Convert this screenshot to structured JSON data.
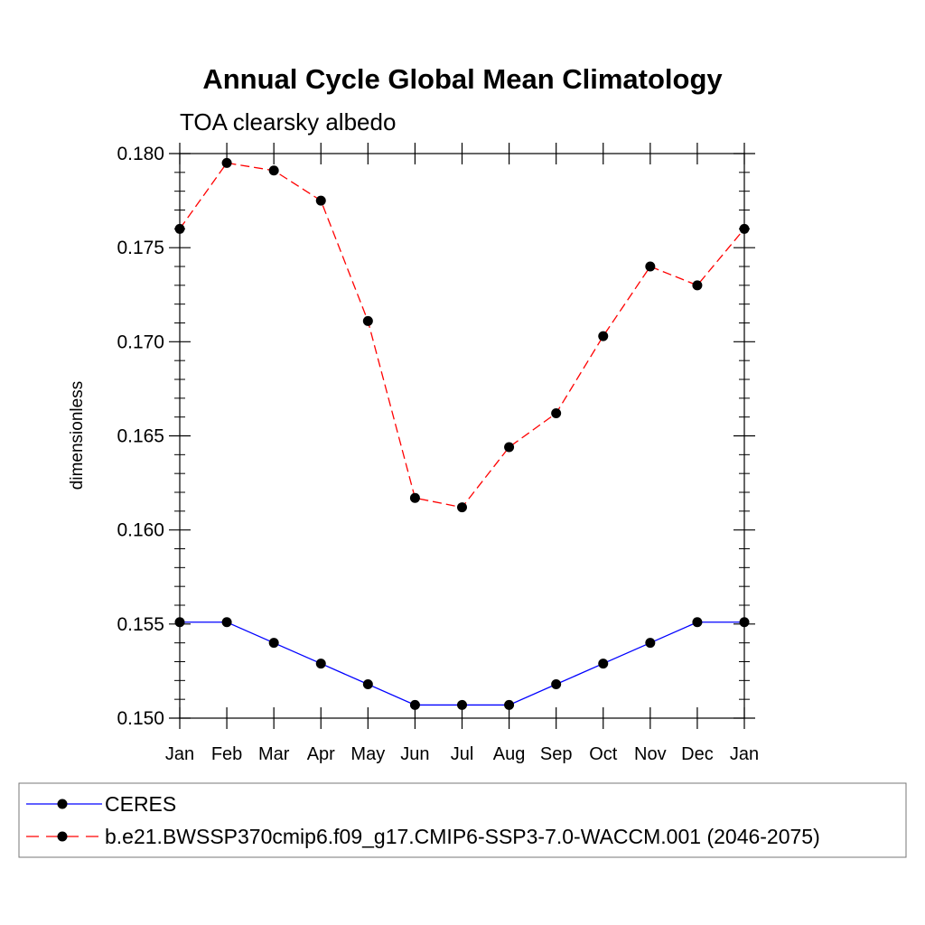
{
  "chart_data": {
    "type": "line",
    "title": "Annual Cycle Global Mean Climatology",
    "subtitle": "TOA clearsky albedo",
    "ylabel": "dimensionless",
    "xlabel": "",
    "categories": [
      "Jan",
      "Feb",
      "Mar",
      "Apr",
      "May",
      "Jun",
      "Jul",
      "Aug",
      "Sep",
      "Oct",
      "Nov",
      "Dec",
      "Jan"
    ],
    "ylim": [
      0.15,
      0.18
    ],
    "yticks": [
      0.15,
      0.155,
      0.16,
      0.165,
      0.17,
      0.175,
      0.18
    ],
    "ytick_labels": [
      "0.150",
      "0.155",
      "0.160",
      "0.165",
      "0.170",
      "0.175",
      "0.180"
    ],
    "grid": false,
    "legend_position": "bottom",
    "series": [
      {
        "name": "CERES",
        "color": "#0000ff",
        "dash": "solid",
        "values": [
          0.1551,
          0.1551,
          0.154,
          0.1529,
          0.1518,
          0.1507,
          0.1507,
          0.1507,
          0.1518,
          0.1529,
          0.154,
          0.1551,
          0.1551
        ]
      },
      {
        "name": "b.e21.BWSSP370cmip6.f09_g17.CMIP6-SSP3-7.0-WACCM.001 (2046-2075)",
        "color": "#ff0000",
        "dash": "dashed",
        "values": [
          0.176,
          0.1795,
          0.1791,
          0.1775,
          0.1711,
          0.1617,
          0.1612,
          0.1644,
          0.1662,
          0.1703,
          0.174,
          0.173,
          0.176
        ]
      }
    ]
  }
}
